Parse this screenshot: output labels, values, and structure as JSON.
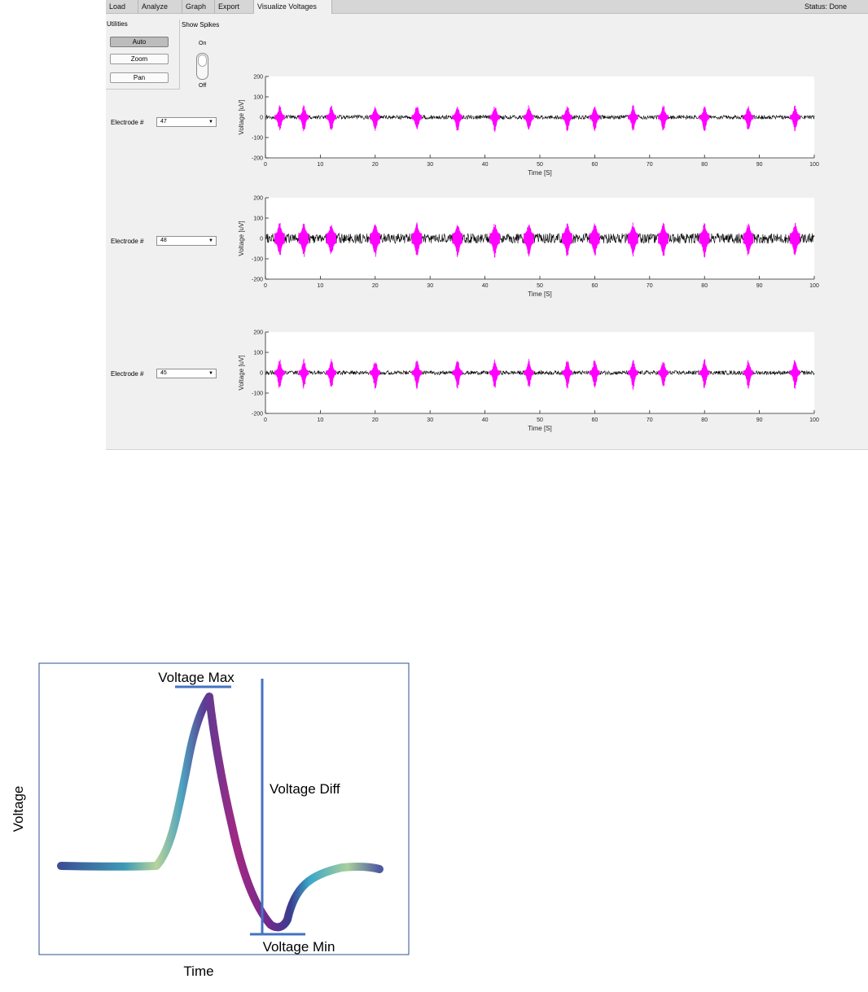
{
  "tabs": [
    {
      "label": "Load",
      "active": false
    },
    {
      "label": "Analyze",
      "active": false
    },
    {
      "label": "Graph",
      "active": false
    },
    {
      "label": "Export",
      "active": false
    },
    {
      "label": "Visualize Voltages",
      "active": true
    }
  ],
  "status_text": "Status: Done",
  "utilities": {
    "title": "Utilities",
    "buttons": [
      {
        "label": "Auto",
        "pressed": true
      },
      {
        "label": "Zoom",
        "pressed": false
      },
      {
        "label": "Pan",
        "pressed": false
      }
    ]
  },
  "show_spikes": {
    "label": "Show Spikes",
    "on_label": "On",
    "off_label": "Off",
    "state": "On"
  },
  "electrode_label": "Electrode #",
  "electrodes": [
    {
      "value": "47"
    },
    {
      "value": "48"
    },
    {
      "value": "45"
    }
  ],
  "colors": {
    "trace": "#000000",
    "spike": "#ff00ff",
    "diagram_line": "#4472c4"
  },
  "chart_data": [
    {
      "type": "line",
      "electrode": "47",
      "xlabel": "Time [S]",
      "ylabel": "Voltage [uV]",
      "xlim": [
        0,
        100
      ],
      "ylim": [
        -200,
        200
      ],
      "xticks": [
        0,
        10,
        20,
        30,
        40,
        50,
        60,
        70,
        80,
        90,
        100
      ],
      "yticks": [
        200,
        100,
        0,
        -100,
        -200
      ],
      "noise_amplitude": 10,
      "spike_times": [
        2.6,
        7.0,
        12.0,
        20.0,
        27.6,
        35.0,
        41.8,
        48.0,
        55.0,
        60.0,
        67.0,
        72.5,
        80.0,
        88.0,
        96.5
      ],
      "spike_amplitude": 65
    },
    {
      "type": "line",
      "electrode": "48",
      "xlabel": "Time [S]",
      "ylabel": "Voltage [uV]",
      "xlim": [
        0,
        100
      ],
      "ylim": [
        -200,
        200
      ],
      "xticks": [
        0,
        10,
        20,
        30,
        40,
        50,
        60,
        70,
        80,
        90,
        100
      ],
      "yticks": [
        200,
        100,
        0,
        -100,
        -200
      ],
      "noise_amplitude": 25,
      "spike_times": [
        2.6,
        7.0,
        12.0,
        20.0,
        27.6,
        35.0,
        41.8,
        48.0,
        55.0,
        60.0,
        67.0,
        72.5,
        80.0,
        88.0,
        96.5
      ],
      "spike_amplitude": 70
    },
    {
      "type": "line",
      "electrode": "45",
      "xlabel": "Time [S]",
      "ylabel": "Voltage [uV]",
      "xlim": [
        0,
        100
      ],
      "ylim": [
        -200,
        200
      ],
      "xticks": [
        0,
        10,
        20,
        30,
        40,
        50,
        60,
        70,
        80,
        90,
        100
      ],
      "yticks": [
        200,
        100,
        0,
        -100,
        -200
      ],
      "noise_amplitude": 10,
      "spike_times": [
        2.6,
        7.0,
        12.0,
        20.0,
        27.6,
        35.0,
        41.8,
        48.0,
        55.0,
        60.0,
        67.0,
        72.5,
        80.0,
        88.0,
        96.5
      ],
      "spike_amplitude": 75
    }
  ],
  "diagram": {
    "label_max": "Voltage Max",
    "label_min": "Voltage Min",
    "label_diff": "Voltage Diff",
    "axis_x": "Time",
    "axis_y": "Voltage"
  }
}
